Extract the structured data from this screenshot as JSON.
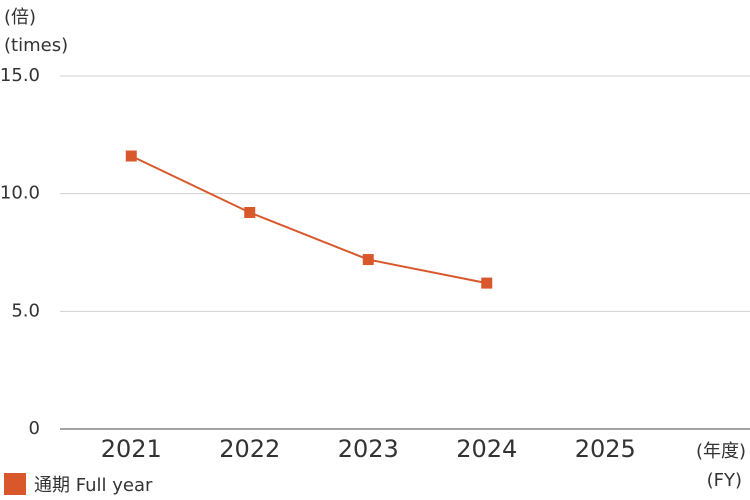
{
  "chart_data": {
    "type": "line",
    "y_label": [
      "(倍)",
      "(times)"
    ],
    "x_label": [
      "(年度)",
      "(FY)"
    ],
    "categories": [
      "2021",
      "2022",
      "2023",
      "2024",
      "2025"
    ],
    "series": [
      {
        "name": "通期 Full year",
        "color": "#d9582b",
        "values": [
          11.6,
          9.2,
          7.2,
          6.2,
          null
        ]
      }
    ],
    "ylim": [
      0,
      15
    ],
    "yticks": [
      0,
      {
        "value": 5,
        "label": "5.0"
      },
      {
        "value": 10,
        "label": "10.0"
      },
      {
        "value": 15,
        "label": "15.0"
      }
    ],
    "grid": true
  }
}
